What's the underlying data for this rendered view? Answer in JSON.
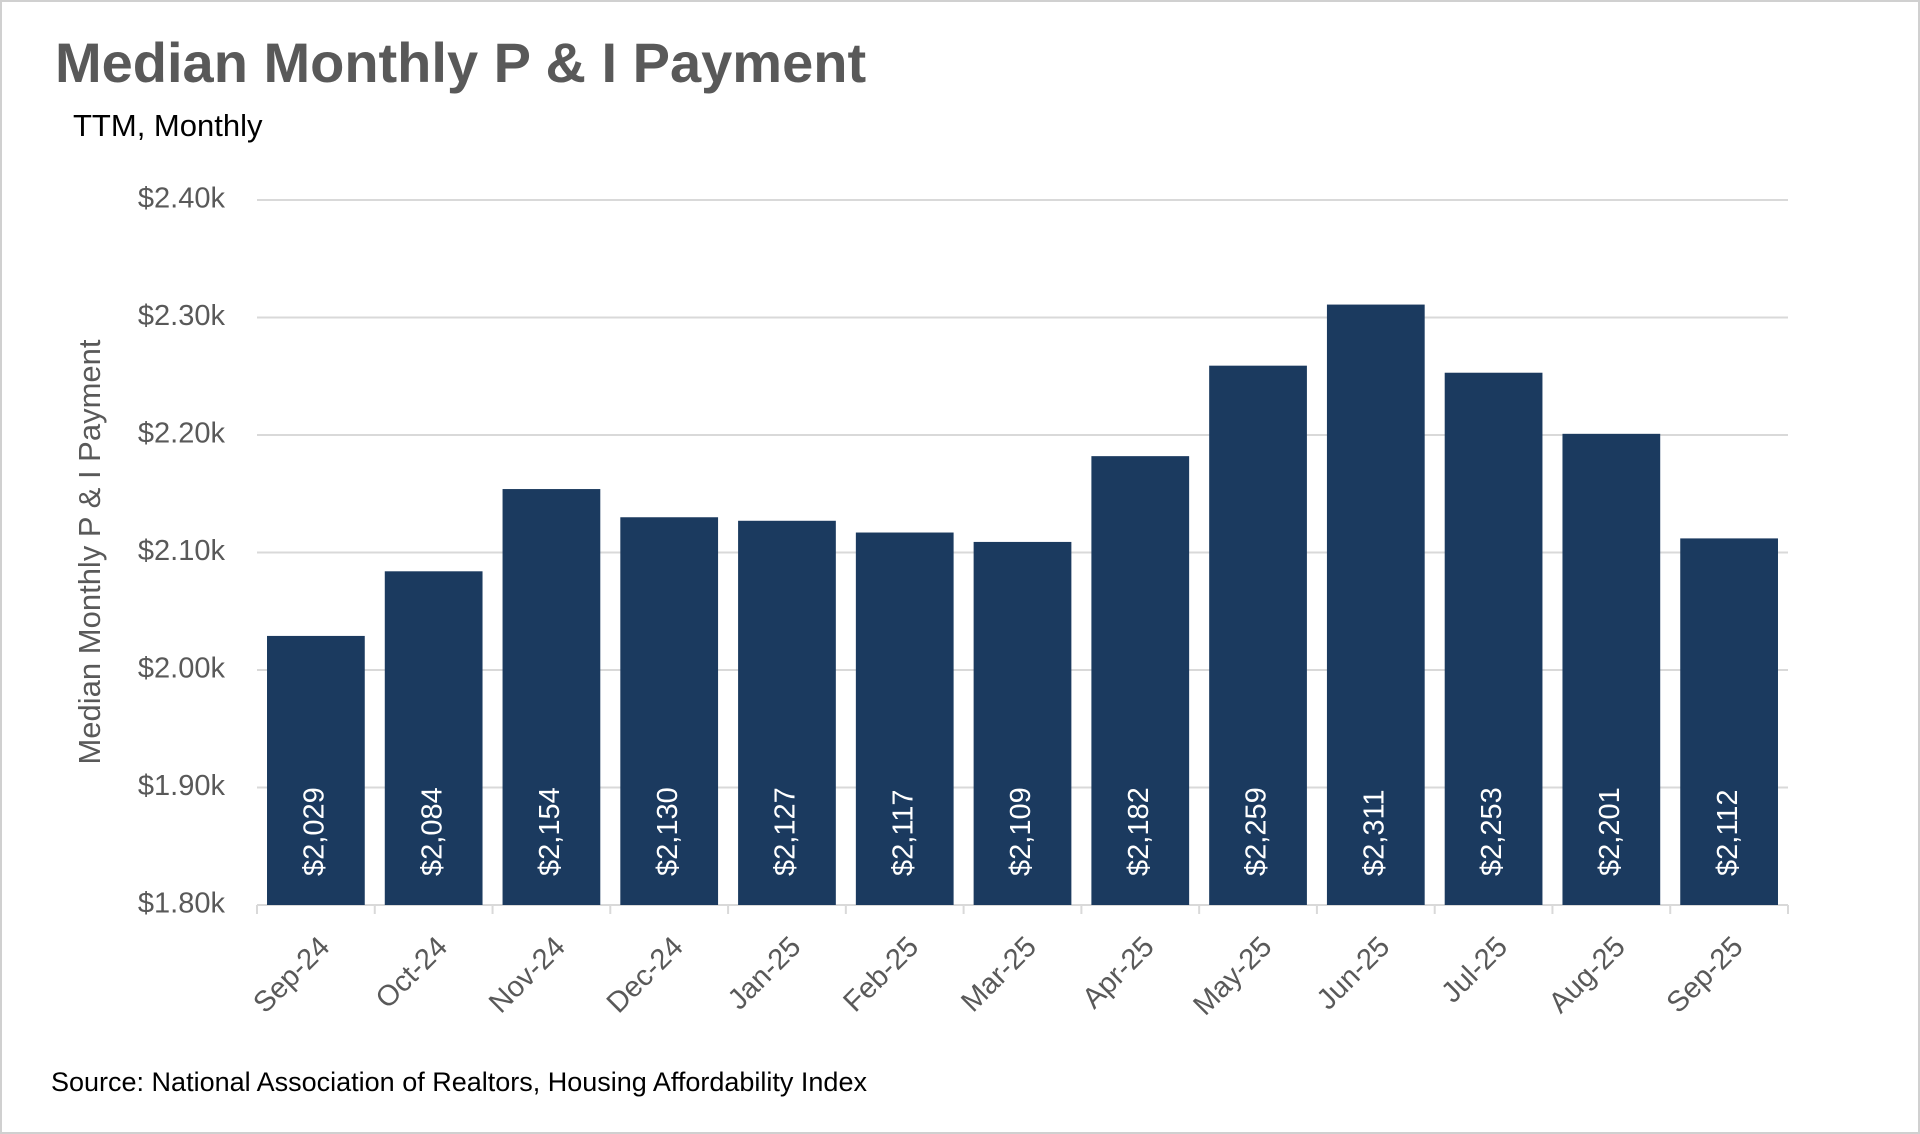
{
  "chart_data": {
    "type": "bar",
    "title": "Median Monthly P & I Payment",
    "subtitle": "TTM, Monthly",
    "y_label": "Median Monthly P & I Payment",
    "source": "Source: National Association of Realtors, Housing Affordability Index",
    "categories": [
      "Sep-24",
      "Oct-24",
      "Nov-24",
      "Dec-24",
      "Jan-25",
      "Feb-25",
      "Mar-25",
      "Apr-25",
      "May-25",
      "Jun-25",
      "Jul-25",
      "Aug-25",
      "Sep-25"
    ],
    "values": [
      2029,
      2084,
      2154,
      2130,
      2127,
      2117,
      2109,
      2182,
      2259,
      2311,
      2253,
      2201,
      2112
    ],
    "value_labels": [
      "$2,029",
      "$2,084",
      "$2,154",
      "$2,130",
      "$2,127",
      "$2,117",
      "$2,109",
      "$2,182",
      "$2,259",
      "$2,311",
      "$2,253",
      "$2,201",
      "$2,112"
    ],
    "color": "#1b3a5f",
    "ylim": [
      1800,
      2400
    ],
    "yticks": [
      {
        "value": 1800,
        "label": "$1.80k"
      },
      {
        "value": 1900,
        "label": "$1.90k"
      },
      {
        "value": 2000,
        "label": "$2.00k"
      },
      {
        "value": 2100,
        "label": "$2.10k"
      },
      {
        "value": 2200,
        "label": "$2.20k"
      },
      {
        "value": 2300,
        "label": "$2.30k"
      },
      {
        "value": 2400,
        "label": "$2.40k"
      }
    ],
    "grid": true
  }
}
